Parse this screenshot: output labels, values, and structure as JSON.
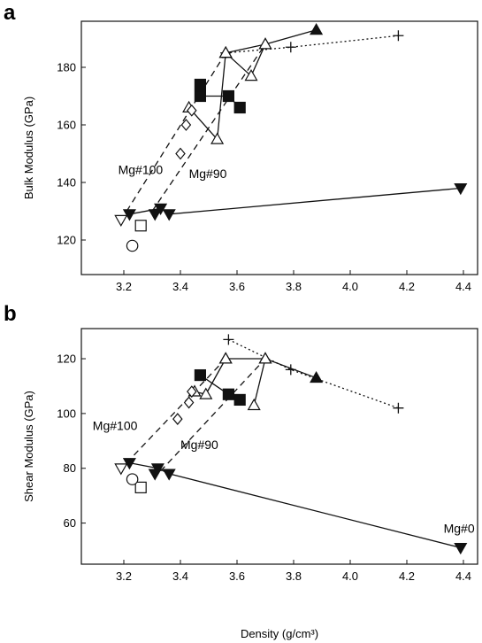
{
  "chart_data": [
    {
      "panel": "a",
      "type": "scatter",
      "xlabel": "",
      "ylabel": "Bulk Modulus (GPa)",
      "xlim": [
        3.05,
        4.45
      ],
      "ylim": [
        108,
        196
      ],
      "xticks": [
        "3.2",
        "3.4",
        "3.6",
        "3.8",
        "4.0",
        "4.2",
        "4.4"
      ],
      "yticks": [
        "120",
        "140",
        "160",
        "180"
      ],
      "annotations": [
        {
          "text": "Mg#100",
          "x": 3.18,
          "y": 143
        },
        {
          "text": "Mg#90",
          "x": 3.43,
          "y": 141.5
        }
      ],
      "series": [
        {
          "marker": "triangle-up-filled",
          "line": "solid",
          "points": [
            [
              3.56,
              185
            ],
            [
              3.7,
              188
            ],
            [
              3.88,
              193
            ]
          ]
        },
        {
          "marker": "plus",
          "line": "dotted",
          "points": [
            [
              3.56,
              185
            ],
            [
              3.79,
              187
            ],
            [
              4.17,
              191
            ]
          ]
        },
        {
          "marker": "triangle-up-open",
          "line": "solid",
          "points": [
            [
              3.43,
              166
            ],
            [
              3.53,
              155
            ],
            [
              3.56,
              185
            ]
          ]
        },
        {
          "marker": "triangle-up-open",
          "line": "solid",
          "points": [
            [
              3.56,
              185
            ],
            [
              3.65,
              177
            ],
            [
              3.7,
              188
            ]
          ]
        },
        {
          "marker": "diamond-open",
          "points": [
            [
              3.4,
              150
            ],
            [
              3.42,
              160
            ],
            [
              3.44,
              165
            ]
          ]
        },
        {
          "marker": "square-filled",
          "line": "solid",
          "points": [
            [
              3.47,
              170
            ],
            [
              3.57,
              170
            ],
            [
              3.61,
              166
            ]
          ]
        },
        {
          "marker": "square-filled",
          "points": [
            [
              3.47,
              174
            ]
          ]
        },
        {
          "marker": "triangle-down-filled",
          "line": "solid",
          "points": [
            [
              3.22,
              129
            ],
            [
              3.33,
              131
            ],
            [
              3.36,
              129
            ],
            [
              4.39,
              138
            ]
          ]
        },
        {
          "marker": "triangle-down-filled",
          "points": [
            [
              3.31,
              129
            ]
          ]
        },
        {
          "marker": "triangle-down-open",
          "points": [
            [
              3.19,
              127
            ]
          ]
        },
        {
          "marker": "square-open",
          "points": [
            [
              3.26,
              125
            ]
          ]
        },
        {
          "marker": "circle-open",
          "points": [
            [
              3.23,
              118
            ]
          ]
        },
        {
          "marker": "none",
          "line": "dashed",
          "points": [
            [
              3.21,
              130
            ],
            [
              3.56,
              185
            ]
          ]
        },
        {
          "marker": "none",
          "line": "dashed",
          "points": [
            [
              3.3,
              130
            ],
            [
              3.7,
              188
            ]
          ]
        }
      ]
    },
    {
      "panel": "b",
      "type": "scatter",
      "xlabel": "Density (g/cm³)",
      "ylabel": "Shear Modulus (GPa)",
      "xlim": [
        3.05,
        4.45
      ],
      "ylim": [
        45,
        131
      ],
      "xticks": [
        "3.2",
        "3.4",
        "3.6",
        "3.8",
        "4.0",
        "4.2",
        "4.4"
      ],
      "yticks": [
        "60",
        "80",
        "100",
        "120"
      ],
      "annotations": [
        {
          "text": "Mg#100",
          "x": 3.09,
          "y": 94
        },
        {
          "text": "Mg#90",
          "x": 3.4,
          "y": 87
        },
        {
          "text": "Mg#0",
          "x": 4.33,
          "y": 56.5
        }
      ],
      "series": [
        {
          "marker": "triangle-up-filled",
          "line": "solid",
          "points": [
            [
              3.56,
              120
            ],
            [
              3.7,
              120
            ],
            [
              3.88,
              113
            ]
          ]
        },
        {
          "marker": "plus",
          "line": "dotted",
          "points": [
            [
              3.57,
              127
            ],
            [
              3.79,
              116
            ],
            [
              4.17,
              102
            ]
          ]
        },
        {
          "marker": "triangle-up-open",
          "line": "solid",
          "points": [
            [
              3.45,
              108
            ],
            [
              3.49,
              107
            ],
            [
              3.56,
              120
            ]
          ]
        },
        {
          "marker": "triangle-up-open",
          "line": "solid",
          "points": [
            [
              3.66,
              103
            ],
            [
              3.7,
              120
            ]
          ]
        },
        {
          "marker": "diamond-open",
          "points": [
            [
              3.39,
              98
            ],
            [
              3.43,
              104
            ],
            [
              3.44,
              108
            ]
          ]
        },
        {
          "marker": "square-filled",
          "line": "solid",
          "points": [
            [
              3.47,
              114
            ],
            [
              3.57,
              107
            ],
            [
              3.61,
              105
            ]
          ]
        },
        {
          "marker": "triangle-down-filled",
          "line": "solid",
          "points": [
            [
              3.22,
              82
            ],
            [
              3.32,
              80
            ],
            [
              3.36,
              78
            ],
            [
              4.39,
              51
            ]
          ]
        },
        {
          "marker": "triangle-down-filled",
          "points": [
            [
              3.31,
              78
            ]
          ]
        },
        {
          "marker": "triangle-down-open",
          "points": [
            [
              3.19,
              80
            ]
          ]
        },
        {
          "marker": "square-open",
          "points": [
            [
              3.26,
              73
            ]
          ]
        },
        {
          "marker": "circle-open",
          "points": [
            [
              3.23,
              76
            ]
          ]
        },
        {
          "marker": "none",
          "line": "dashed",
          "points": [
            [
              3.21,
              82
            ],
            [
              3.56,
              120
            ]
          ]
        },
        {
          "marker": "none",
          "line": "dashed",
          "points": [
            [
              3.33,
              79
            ],
            [
              3.7,
              120
            ]
          ]
        }
      ]
    }
  ],
  "figure": {
    "panel_a_letter": "a",
    "panel_b_letter": "b"
  }
}
